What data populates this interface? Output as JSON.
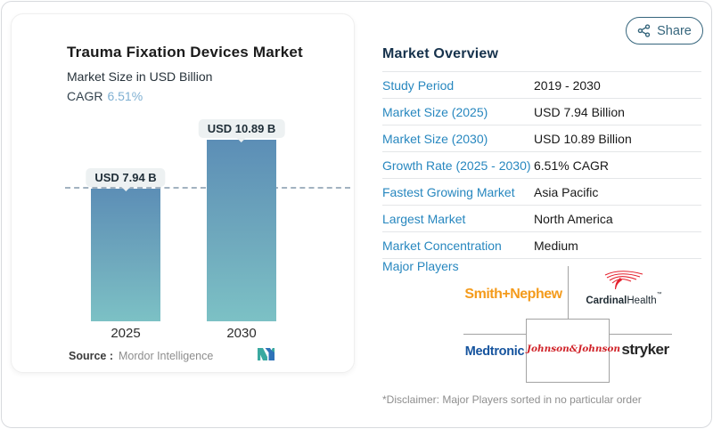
{
  "share": {
    "label": "Share"
  },
  "chart_card": {
    "title": "Trauma Fixation Devices Market",
    "subtitle": "Market Size in USD Billion",
    "cagr_label": "CAGR",
    "cagr_value": "6.51%",
    "source_label": "Source :",
    "source_value": "Mordor Intelligence"
  },
  "chart_data": {
    "type": "bar",
    "categories": [
      "2025",
      "2030"
    ],
    "values": [
      7.94,
      10.89
    ],
    "labels": [
      "USD 7.94 B",
      "USD 10.89 B"
    ],
    "title": "Trauma Fixation Devices Market",
    "ylabel": "Market Size in USD Billion",
    "ylim": [
      0,
      11.9
    ],
    "reference_dashed_line_at": 7.94,
    "bar_gradient": [
      "#5c8eb6",
      "#7cc1c5"
    ],
    "legend": "none",
    "grid": "off"
  },
  "overview": {
    "title": "Market Overview",
    "rows": [
      {
        "label": "Study Period",
        "value": "2019 - 2030"
      },
      {
        "label": "Market Size (2025)",
        "value": "USD 7.94 Billion"
      },
      {
        "label": "Market Size (2030)",
        "value": "USD 10.89 Billion"
      },
      {
        "label": "Growth Rate (2025 - 2030)",
        "value": "6.51% CAGR"
      },
      {
        "label": "Fastest Growing Market",
        "value": "Asia Pacific"
      },
      {
        "label": "Largest Market",
        "value": "North America"
      },
      {
        "label": "Market Concentration",
        "value": "Medium"
      }
    ],
    "major_players_label": "Major Players",
    "players": {
      "smith_nephew": {
        "text": "Smith+Nephew",
        "color": "#f49b1c"
      },
      "cardinal": {
        "bold": "Cardinal",
        "regular": "Health",
        "tm": "™",
        "accent": "#e4202c"
      },
      "medtronic": {
        "text": "Medtronic",
        "color": "#16549e"
      },
      "jnj": {
        "text": "Johnson&Johnson",
        "color": "#d02228"
      },
      "stryker": {
        "text": "stryker",
        "color": "#262626"
      }
    },
    "disclaimer": "*Disclaimer: Major Players sorted in no particular order"
  }
}
